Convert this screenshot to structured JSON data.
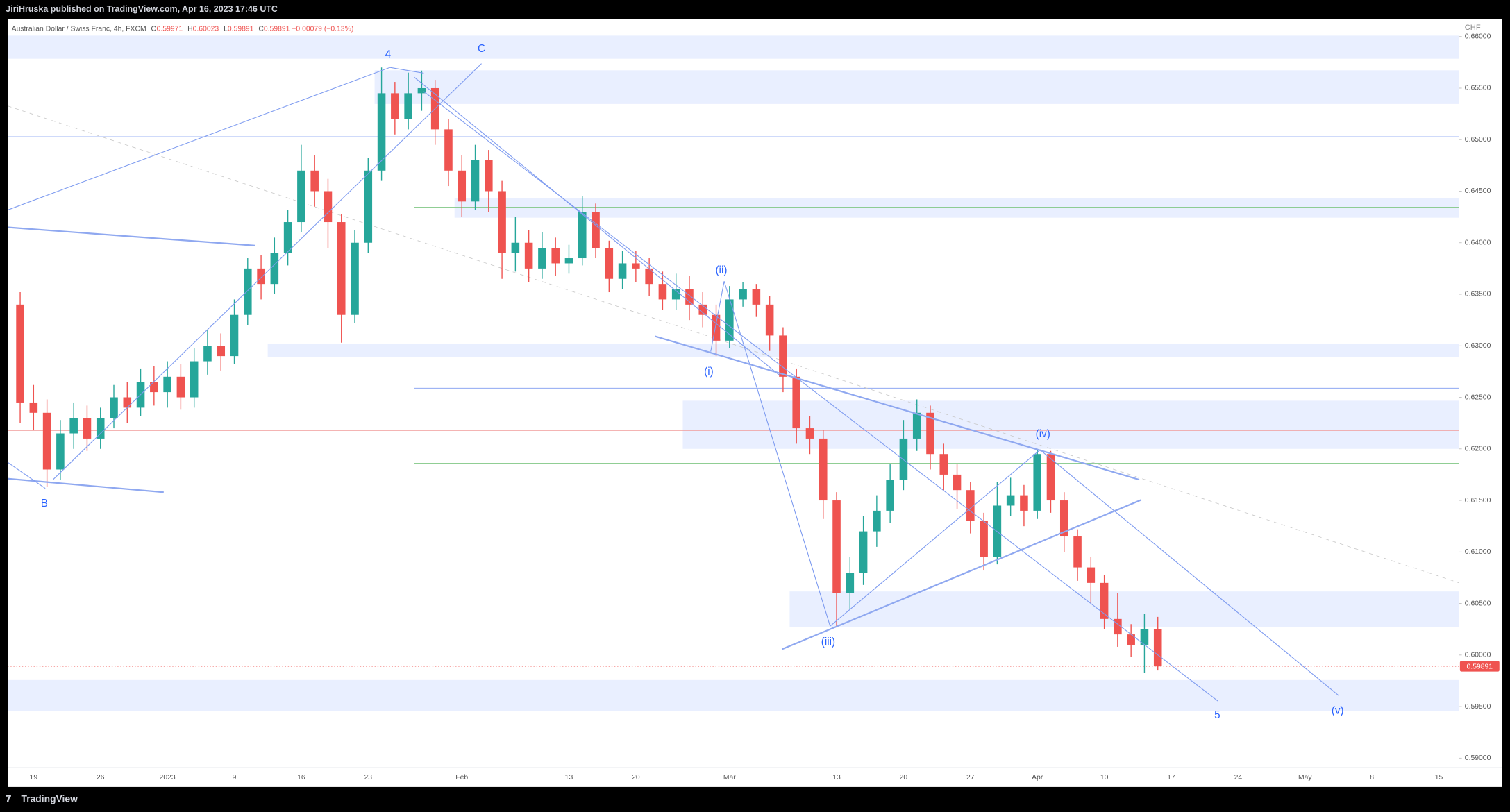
{
  "header": {
    "publisher": "JiriHruska published on TradingView.com, Apr 16, 2023 17:46 UTC"
  },
  "footer": {
    "brand": "TradingView"
  },
  "chart_data": {
    "type": "candlestick",
    "legend": {
      "title": "Australian Dollar / Swiss Franc, 4h, FXCM",
      "items": [
        {
          "label": "O",
          "value": 0.59971
        },
        {
          "label": "H",
          "value": 0.60023
        },
        {
          "label": "L",
          "value": 0.59891
        },
        {
          "label": "C",
          "value": 0.59891
        }
      ],
      "change": "−0.00079 (−0.13%)"
    },
    "currency": "CHF",
    "categories": [
      null,
      "19",
      null,
      null,
      null,
      null,
      "26",
      null,
      null,
      null,
      null,
      "2023",
      null,
      null,
      null,
      null,
      "9",
      null,
      null,
      null,
      null,
      "16",
      null,
      null,
      null,
      null,
      "23",
      null,
      null,
      null,
      null,
      null,
      null,
      "Feb",
      null,
      null,
      null,
      null,
      null,
      null,
      null,
      "13",
      null,
      null,
      null,
      null,
      "20",
      null,
      null,
      null,
      null,
      null,
      null,
      "Mar",
      null,
      null,
      null,
      null,
      null,
      null,
      null,
      "13",
      null,
      null,
      null,
      null,
      "20",
      null,
      null,
      null,
      null,
      "27",
      null,
      null,
      null,
      null,
      "Apr",
      null,
      null,
      null,
      null,
      "10",
      null,
      null,
      null,
      null,
      "17",
      null,
      null,
      null,
      null,
      "24",
      null,
      null,
      null,
      null,
      "May",
      null,
      null,
      null,
      null,
      "8",
      null,
      null,
      null,
      null,
      "15",
      null
    ],
    "open": [
      0.634,
      0.6245,
      0.6235,
      0.618,
      0.6215,
      0.623,
      0.621,
      0.623,
      0.625,
      0.624,
      0.6265,
      0.6255,
      0.627,
      0.625,
      0.6285,
      0.63,
      0.629,
      0.633,
      0.6375,
      0.636,
      0.639,
      0.642,
      0.647,
      0.645,
      0.642,
      0.633,
      0.64,
      0.647,
      0.6545,
      0.652,
      0.6545,
      0.655,
      0.651,
      0.647,
      0.644,
      0.648,
      0.645,
      0.639,
      0.64,
      0.6375,
      0.6395,
      0.638,
      0.6385,
      0.643,
      0.6395,
      0.6365,
      0.638,
      0.6375,
      0.636,
      0.6345,
      0.6355,
      0.634,
      0.633,
      0.6305,
      0.6345,
      0.6355,
      0.634,
      0.631,
      0.627,
      0.622,
      0.621,
      0.615,
      0.606,
      0.608,
      0.612,
      0.614,
      0.617,
      0.621,
      0.6235,
      0.6195,
      0.6175,
      0.616,
      0.613,
      0.6095,
      0.6145,
      0.6155,
      0.614,
      0.6195,
      0.615,
      0.6115,
      0.6085,
      0.607,
      0.6035,
      0.602,
      0.601,
      0.6025,
      null,
      null,
      null,
      null,
      null,
      null,
      null,
      null,
      null,
      null,
      null,
      null,
      null,
      null,
      null,
      null,
      null,
      null,
      null,
      null,
      null,
      null
    ],
    "high": [
      0.6352,
      0.6262,
      0.6248,
      0.6228,
      0.6245,
      0.6242,
      0.624,
      0.6262,
      0.6265,
      0.6278,
      0.628,
      0.6285,
      0.6282,
      0.6298,
      0.6315,
      0.6312,
      0.6345,
      0.6385,
      0.6388,
      0.6405,
      0.6432,
      0.6495,
      0.6485,
      0.6462,
      0.6428,
      0.6412,
      0.6482,
      0.657,
      0.6556,
      0.6565,
      0.6567,
      0.6558,
      0.652,
      0.6485,
      0.6495,
      0.649,
      0.646,
      0.6425,
      0.6412,
      0.641,
      0.6405,
      0.6398,
      0.6445,
      0.6438,
      0.6402,
      0.6392,
      0.6392,
      0.6385,
      0.6372,
      0.637,
      0.6368,
      0.6352,
      0.634,
      0.6358,
      0.6362,
      0.636,
      0.6348,
      0.6318,
      0.6278,
      0.6232,
      0.6218,
      0.6158,
      0.6095,
      0.6135,
      0.6155,
      0.6185,
      0.6228,
      0.6248,
      0.6242,
      0.6205,
      0.6185,
      0.6168,
      0.6138,
      0.6168,
      0.6172,
      0.6165,
      0.62,
      0.6198,
      0.6158,
      0.6122,
      0.6095,
      0.6078,
      0.606,
      0.603,
      0.604,
      0.6037,
      null,
      null,
      null,
      null,
      null,
      null,
      null,
      null,
      null,
      null,
      null,
      null,
      null,
      null,
      null,
      null,
      null,
      null,
      null,
      null,
      null,
      null
    ],
    "low": [
      0.6225,
      0.6218,
      0.6163,
      0.617,
      0.62,
      0.6198,
      0.62,
      0.622,
      0.6225,
      0.6232,
      0.6242,
      0.624,
      0.6238,
      0.624,
      0.6272,
      0.6276,
      0.6282,
      0.632,
      0.6345,
      0.635,
      0.6378,
      0.641,
      0.6435,
      0.6395,
      0.6303,
      0.6322,
      0.639,
      0.646,
      0.6505,
      0.651,
      0.6528,
      0.6495,
      0.6455,
      0.6425,
      0.6432,
      0.643,
      0.6365,
      0.6372,
      0.6362,
      0.6365,
      0.6368,
      0.637,
      0.6378,
      0.6385,
      0.6352,
      0.6355,
      0.6362,
      0.6348,
      0.6335,
      0.6335,
      0.6325,
      0.6318,
      0.629,
      0.6298,
      0.6338,
      0.6328,
      0.6295,
      0.6255,
      0.6205,
      0.6195,
      0.6132,
      0.6028,
      0.6045,
      0.6068,
      0.6105,
      0.6128,
      0.616,
      0.6198,
      0.618,
      0.616,
      0.6142,
      0.6118,
      0.6082,
      0.6088,
      0.6135,
      0.6125,
      0.6132,
      0.6138,
      0.61,
      0.6072,
      0.605,
      0.6025,
      0.6008,
      0.5998,
      0.5983,
      0.5985,
      null,
      null,
      null,
      null,
      null,
      null,
      null,
      null,
      null,
      null,
      null,
      null,
      null,
      null,
      null,
      null,
      null,
      null,
      null,
      null,
      null,
      null
    ],
    "close": [
      0.6245,
      0.6235,
      0.618,
      0.6215,
      0.623,
      0.621,
      0.623,
      0.625,
      0.624,
      0.6265,
      0.6255,
      0.627,
      0.625,
      0.6285,
      0.63,
      0.629,
      0.633,
      0.6375,
      0.636,
      0.639,
      0.642,
      0.647,
      0.645,
      0.642,
      0.633,
      0.64,
      0.647,
      0.6545,
      0.652,
      0.6545,
      0.655,
      0.651,
      0.647,
      0.644,
      0.648,
      0.645,
      0.639,
      0.64,
      0.6375,
      0.6395,
      0.638,
      0.6385,
      0.643,
      0.6395,
      0.6365,
      0.638,
      0.6375,
      0.636,
      0.6345,
      0.6355,
      0.634,
      0.633,
      0.6305,
      0.6345,
      0.6355,
      0.634,
      0.631,
      0.627,
      0.622,
      0.621,
      0.615,
      0.606,
      0.608,
      0.612,
      0.614,
      0.617,
      0.621,
      0.6235,
      0.6195,
      0.6175,
      0.616,
      0.613,
      0.6095,
      0.6145,
      0.6155,
      0.614,
      0.6195,
      0.615,
      0.6115,
      0.6085,
      0.607,
      0.6035,
      0.602,
      0.601,
      0.6025,
      0.5989,
      null,
      null,
      null,
      null,
      null,
      null,
      null,
      null,
      null,
      null,
      null,
      null,
      null,
      null,
      null,
      null,
      null,
      null,
      null,
      null,
      null,
      null
    ],
    "up_color": "#26a69a",
    "down_color": "#ef5350",
    "ylim": [
      0.58907,
      0.66168
    ],
    "yticks": [
      {
        "value": 0.59,
        "label": "0.59000"
      },
      {
        "value": 0.595,
        "label": "0.59500"
      },
      {
        "value": 0.6,
        "label": "0.60000"
      },
      {
        "value": 0.605,
        "label": "0.60500"
      },
      {
        "value": 0.61,
        "label": "0.61000"
      },
      {
        "value": 0.615,
        "label": "0.61500"
      },
      {
        "value": 0.62,
        "label": "0.62000"
      },
      {
        "value": 0.625,
        "label": "0.62500"
      },
      {
        "value": 0.63,
        "label": "0.63000"
      },
      {
        "value": 0.635,
        "label": "0.63500"
      },
      {
        "value": 0.64,
        "label": "0.64000"
      },
      {
        "value": 0.645,
        "label": "0.64500"
      },
      {
        "value": 0.65,
        "label": "0.65000"
      },
      {
        "value": 0.655,
        "label": "0.65500"
      },
      {
        "value": 0.66,
        "label": "0.66000"
      }
    ],
    "grid": false,
    "last_price": 0.59891,
    "last_price_color": "#ef5350",
    "annotations": [
      "4",
      "C",
      "B",
      "(i)",
      "(ii)",
      "(iii)",
      "(iv)",
      "(v)",
      "5"
    ]
  }
}
